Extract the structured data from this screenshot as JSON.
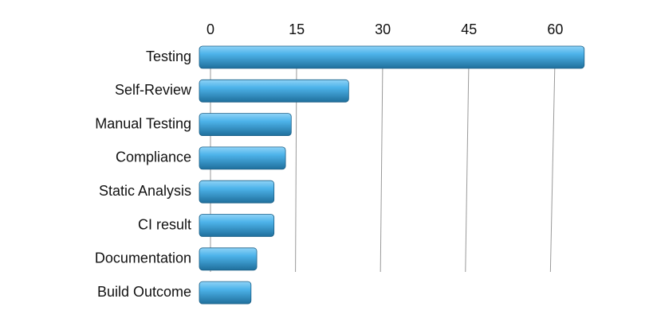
{
  "chart_data": {
    "type": "bar",
    "orientation": "horizontal",
    "categories": [
      "Testing",
      "Self-Review",
      "Manual Testing",
      "Compliance",
      "Static Analysis",
      "CI result",
      "Documentation",
      "Build Outcome"
    ],
    "values": [
      67,
      26,
      16,
      15,
      13,
      13,
      10,
      9
    ],
    "color": "#4db3ea",
    "xlim": [
      0,
      68
    ],
    "xticks": [
      0,
      15,
      30,
      45,
      60
    ],
    "grid": true
  }
}
